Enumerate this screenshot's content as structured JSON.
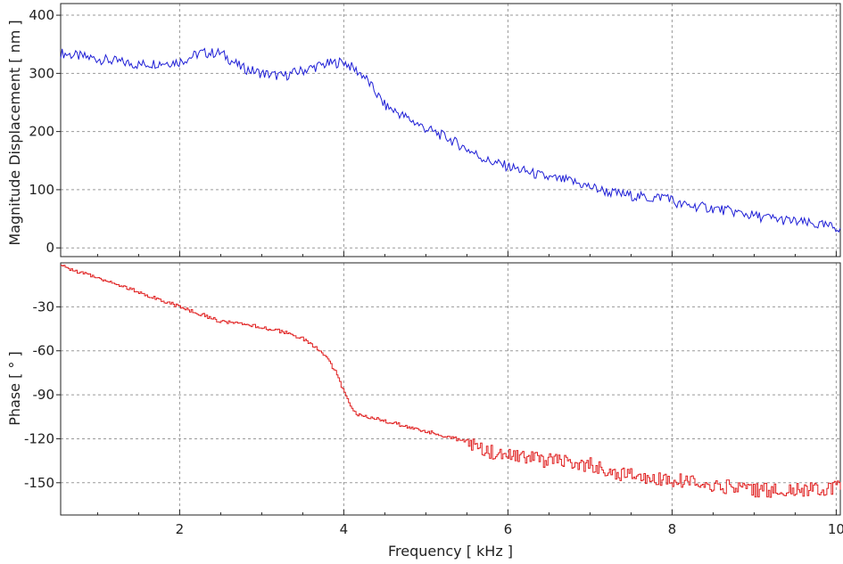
{
  "chart_data": [
    {
      "type": "line",
      "title": "",
      "xlabel": "",
      "ylabel": "Magnitude Displacement [ nm ]",
      "xlim": [
        0.55,
        10.05
      ],
      "ylim": [
        -15,
        420
      ],
      "xticks": [
        2,
        4,
        6,
        8,
        10
      ],
      "yticks": [
        0,
        100,
        200,
        300,
        400
      ],
      "ytick_labels": [
        "0",
        "100",
        "200",
        "300",
        "400"
      ],
      "grid": true,
      "color": "#1f1fd6",
      "x": [
        0.55,
        0.75,
        1.0,
        1.25,
        1.5,
        1.75,
        2.0,
        2.25,
        2.5,
        2.75,
        3.0,
        3.25,
        3.5,
        3.75,
        4.0,
        4.25,
        4.5,
        4.75,
        5.0,
        5.25,
        5.5,
        5.75,
        6.0,
        6.25,
        6.5,
        6.75,
        7.0,
        7.25,
        7.5,
        7.75,
        7.95,
        8.05,
        8.25,
        8.5,
        8.75,
        9.0,
        9.25,
        9.5,
        9.75,
        10.0
      ],
      "values": [
        335,
        330,
        325,
        320,
        315,
        318,
        320,
        335,
        335,
        310,
        300,
        295,
        305,
        315,
        320,
        295,
        245,
        225,
        205,
        190,
        170,
        150,
        140,
        130,
        120,
        115,
        105,
        95,
        90,
        85,
        90,
        75,
        72,
        68,
        62,
        55,
        50,
        45,
        40,
        35
      ]
    },
    {
      "type": "line",
      "title": "",
      "xlabel": "Frequency [ kHz ]",
      "ylabel": "Phase [ ° ]",
      "xlim": [
        0.55,
        10.05
      ],
      "ylim": [
        -172,
        0
      ],
      "xticks": [
        2,
        4,
        6,
        8,
        10
      ],
      "xtick_labels": [
        "2",
        "4",
        "6",
        "8",
        "10"
      ],
      "yticks": [
        -30,
        -60,
        -90,
        -120,
        -150
      ],
      "ytick_labels": [
        "-30",
        "-60",
        "-90",
        "-120",
        "-150"
      ],
      "grid": true,
      "color": "#e02020",
      "x": [
        0.55,
        0.75,
        1.0,
        1.25,
        1.5,
        1.75,
        2.0,
        2.25,
        2.5,
        2.75,
        3.0,
        3.25,
        3.5,
        3.75,
        3.9,
        4.05,
        4.15,
        4.5,
        5.0,
        5.5,
        5.75,
        6.0,
        6.5,
        7.0,
        7.25,
        7.5,
        7.75,
        8.0,
        8.5,
        9.0,
        9.5,
        10.0
      ],
      "values": [
        -2,
        -6,
        -10,
        -15,
        -20,
        -25,
        -30,
        -35,
        -40,
        -42,
        -44,
        -47,
        -52,
        -62,
        -75,
        -95,
        -103,
        -108,
        -115,
        -122,
        -128,
        -132,
        -135,
        -138,
        -143,
        -145,
        -147,
        -148,
        -152,
        -155,
        -155,
        -153
      ]
    }
  ]
}
